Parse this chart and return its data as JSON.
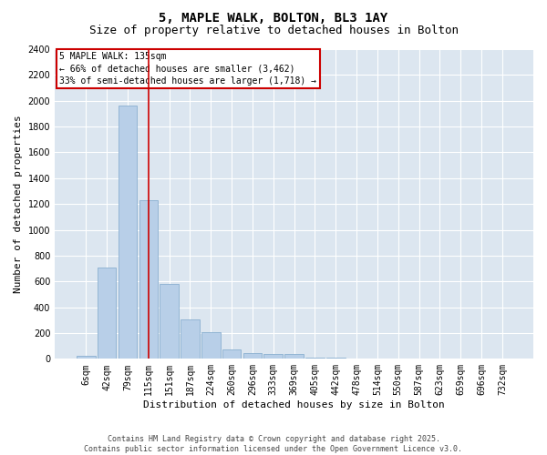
{
  "title": "5, MAPLE WALK, BOLTON, BL3 1AY",
  "subtitle": "Size of property relative to detached houses in Bolton",
  "xlabel": "Distribution of detached houses by size in Bolton",
  "ylabel": "Number of detached properties",
  "categories": [
    "6sqm",
    "42sqm",
    "79sqm",
    "115sqm",
    "151sqm",
    "187sqm",
    "224sqm",
    "260sqm",
    "296sqm",
    "333sqm",
    "369sqm",
    "405sqm",
    "442sqm",
    "478sqm",
    "514sqm",
    "550sqm",
    "587sqm",
    "623sqm",
    "659sqm",
    "696sqm",
    "732sqm"
  ],
  "values": [
    20,
    710,
    1960,
    1230,
    580,
    305,
    205,
    75,
    45,
    35,
    35,
    10,
    10,
    5,
    5,
    5,
    3,
    2,
    2,
    2,
    2
  ],
  "bar_color": "#b8cfe8",
  "bar_edge_color": "#8aafd0",
  "vline_x": 3.0,
  "vline_color": "#cc0000",
  "annotation_text": "5 MAPLE WALK: 135sqm\n← 66% of detached houses are smaller (3,462)\n33% of semi-detached houses are larger (1,718) →",
  "annotation_box_color": "#cc0000",
  "ylim": [
    0,
    2400
  ],
  "yticks": [
    0,
    200,
    400,
    600,
    800,
    1000,
    1200,
    1400,
    1600,
    1800,
    2000,
    2200,
    2400
  ],
  "bg_color": "#dce6f0",
  "grid_color": "#ffffff",
  "footer_text": "Contains HM Land Registry data © Crown copyright and database right 2025.\nContains public sector information licensed under the Open Government Licence v3.0.",
  "title_fontsize": 10,
  "subtitle_fontsize": 9,
  "axis_label_fontsize": 8,
  "tick_fontsize": 7,
  "annotation_fontsize": 7,
  "footer_fontsize": 6
}
